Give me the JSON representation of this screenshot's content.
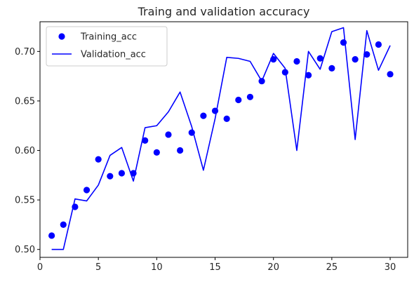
{
  "chart_data": {
    "type": "line",
    "title": "Traing and validation accuracy",
    "xlabel": "",
    "ylabel": "",
    "xlim": [
      0,
      31.5
    ],
    "ylim": [
      0.492,
      0.73
    ],
    "xticks": [
      0,
      5,
      10,
      15,
      20,
      25,
      30
    ],
    "yticks": [
      0.5,
      0.55,
      0.6,
      0.65,
      0.7
    ],
    "xtick_labels": [
      "0",
      "5",
      "10",
      "15",
      "20",
      "25",
      "30"
    ],
    "ytick_labels": [
      "0.50",
      "0.55",
      "0.60",
      "0.65",
      "0.70"
    ],
    "grid": false,
    "legend_position": "top-left",
    "series": [
      {
        "name": "Training_acc",
        "style": "scatter",
        "color": "#0000ff",
        "x": [
          1,
          2,
          3,
          4,
          5,
          6,
          7,
          8,
          9,
          10,
          11,
          12,
          13,
          14,
          15,
          16,
          17,
          18,
          19,
          20,
          21,
          22,
          23,
          24,
          25,
          26,
          27,
          28,
          29,
          30
        ],
        "values": [
          0.514,
          0.525,
          0.543,
          0.56,
          0.591,
          0.574,
          0.577,
          0.577,
          0.61,
          0.598,
          0.616,
          0.6,
          0.618,
          0.635,
          0.64,
          0.632,
          0.651,
          0.654,
          0.67,
          0.692,
          0.679,
          0.69,
          0.676,
          0.693,
          0.683,
          0.709,
          0.692,
          0.697,
          0.707,
          0.677
        ]
      },
      {
        "name": "Validation_acc",
        "style": "line",
        "color": "#0000ff",
        "x": [
          1,
          2,
          3,
          4,
          5,
          6,
          7,
          8,
          9,
          10,
          11,
          12,
          13,
          14,
          15,
          16,
          17,
          18,
          19,
          20,
          21,
          22,
          23,
          24,
          25,
          26,
          27,
          28,
          29,
          30
        ],
        "values": [
          0.5,
          0.5,
          0.551,
          0.549,
          0.565,
          0.595,
          0.603,
          0.569,
          0.623,
          0.625,
          0.639,
          0.659,
          0.624,
          0.58,
          0.632,
          0.694,
          0.693,
          0.69,
          0.67,
          0.698,
          0.683,
          0.6,
          0.7,
          0.682,
          0.72,
          0.724,
          0.611,
          0.721,
          0.681,
          0.706
        ]
      }
    ]
  }
}
